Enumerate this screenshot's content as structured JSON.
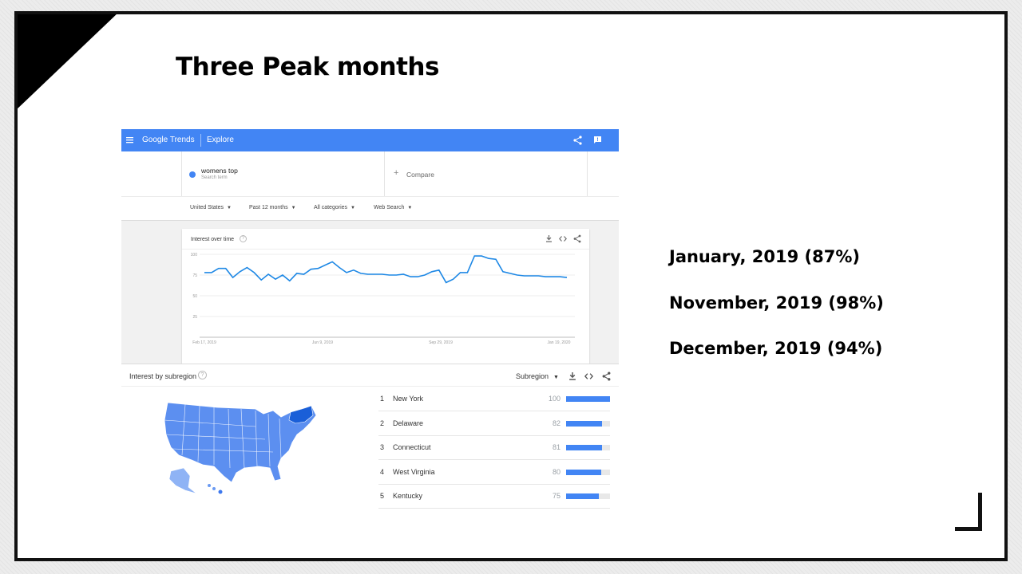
{
  "slide": {
    "title": "Three Peak months",
    "peaks": [
      "January, 2019 (87%)",
      "November, 2019 (98%)",
      "December, 2019 (94%)"
    ]
  },
  "trends": {
    "brand": "Google Trends",
    "section": "Explore",
    "search_term": "womens top",
    "search_term_sub": "Search term",
    "compare": "Compare",
    "filters": [
      "United States",
      "Past 12 months",
      "All categories",
      "Web Search"
    ],
    "interest_over_time": {
      "title": "Interest over time",
      "y_ticks": [
        "100",
        "75",
        "50",
        "25"
      ],
      "x_ticks": [
        "Feb 17, 2019",
        "Jun 9, 2019",
        "Sep 29, 2019",
        "Jan 19, 2020"
      ]
    },
    "region": {
      "title": "Interest by subregion",
      "dropdown": "Subregion",
      "rows": [
        {
          "rank": "1",
          "name": "New York",
          "value": "100",
          "pct": 100
        },
        {
          "rank": "2",
          "name": "Delaware",
          "value": "82",
          "pct": 82
        },
        {
          "rank": "3",
          "name": "Connecticut",
          "value": "81",
          "pct": 81
        },
        {
          "rank": "4",
          "name": "West Virginia",
          "value": "80",
          "pct": 80
        },
        {
          "rank": "5",
          "name": "Kentucky",
          "value": "75",
          "pct": 75
        }
      ]
    },
    "colors": {
      "header": "#4285f4",
      "series": "#1e88e5",
      "bar": "#4285f4",
      "map": "#5c8ff0"
    }
  },
  "chart_data": {
    "type": "line",
    "x_labels": [
      "Feb 17, 2019",
      "Jun 9, 2019",
      "Sep 29, 2019",
      "Jan 19, 2020"
    ],
    "ylim": [
      0,
      100
    ],
    "y_ticks": [
      100,
      75,
      50,
      25
    ],
    "series": [
      {
        "values": [
          78,
          78,
          83,
          83,
          72,
          79,
          84,
          78,
          69,
          76,
          70,
          75,
          68,
          77,
          76,
          82,
          83,
          87,
          91,
          84,
          78,
          81,
          77,
          76,
          76,
          76,
          75,
          75,
          76,
          73,
          73,
          75,
          79,
          81,
          66,
          70,
          78,
          78,
          98,
          98,
          95,
          94,
          79,
          77,
          75,
          74,
          74,
          74,
          73,
          73,
          73,
          72
        ]
      }
    ]
  }
}
